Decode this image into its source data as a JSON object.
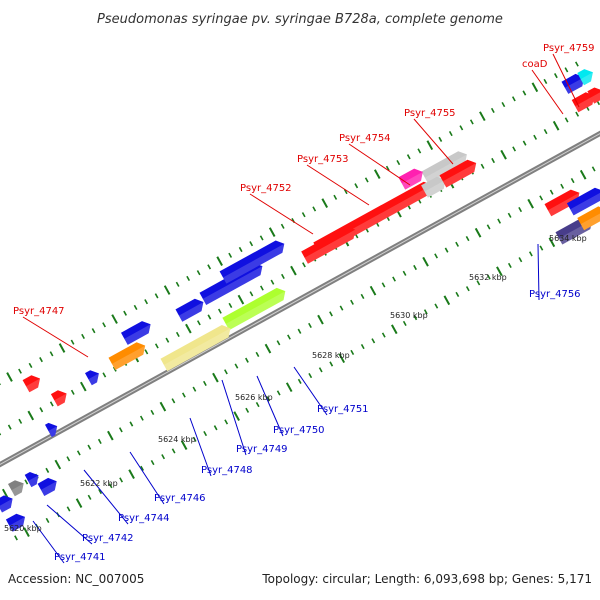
{
  "title": "Pseudomonas syringae pv. syringae B728a, complete genome",
  "footer": {
    "accession": "Accession: NC_007005",
    "topology": "Topology: circular; Length: 6,093,698 bp; Genes: 5,171"
  },
  "colors": {
    "backbone": "#808080",
    "tick": "#1a7a1a",
    "red_label": "#e00000",
    "blue_label": "#0000cc",
    "callout": "#000000"
  },
  "scale_labels": [
    "5620 kbp",
    "5622 kbp",
    "5624 kbp",
    "5626 kbp",
    "5628 kbp",
    "5630 kbp",
    "5632 kbp",
    "5634 kbp"
  ],
  "gene_labels": {
    "top": [
      "Psyr_4759",
      "coaD",
      "Psyr_4755",
      "Psyr_4754",
      "Psyr_4753",
      "Psyr_4752",
      "Psyr_4747"
    ],
    "bottom": [
      "Psyr_4756",
      "Psyr_4751",
      "Psyr_4750",
      "Psyr_4749",
      "Psyr_4748",
      "Psyr_4746",
      "Psyr_4744",
      "Psyr_4742",
      "Psyr_4741"
    ]
  },
  "features": [
    {
      "name": "feature-blue-1",
      "color": "#1010e0"
    },
    {
      "name": "feature-cyan-1",
      "color": "#00e8f0"
    },
    {
      "name": "feature-red-1",
      "color": "#ff1010"
    },
    {
      "name": "feature-red-2",
      "color": "#ff1010"
    },
    {
      "name": "feature-gray-1",
      "color": "#c8c8c8"
    },
    {
      "name": "feature-red-3",
      "color": "#ff1010"
    },
    {
      "name": "feature-magenta-1",
      "color": "#ff20b0"
    },
    {
      "name": "feature-gray-2",
      "color": "#c8c8c8"
    },
    {
      "name": "feature-red-4",
      "color": "#ff1010"
    },
    {
      "name": "feature-red-5",
      "color": "#ff1010"
    },
    {
      "name": "feature-red-6",
      "color": "#ff1010"
    },
    {
      "name": "feature-blue-2",
      "color": "#1010e0"
    },
    {
      "name": "feature-navy-1",
      "color": "#483d8b"
    },
    {
      "name": "feature-orange-1",
      "color": "#ff8c00"
    },
    {
      "name": "feature-blue-3",
      "color": "#1010e0"
    },
    {
      "name": "feature-blue-4",
      "color": "#1010e0"
    },
    {
      "name": "feature-blue-5",
      "color": "#1010e0"
    },
    {
      "name": "feature-yellowgreen-1",
      "color": "#adff2f"
    },
    {
      "name": "feature-khaki-1",
      "color": "#f0e68c"
    },
    {
      "name": "feature-blue-6",
      "color": "#1010e0"
    },
    {
      "name": "feature-orange-2",
      "color": "#ff8c00"
    },
    {
      "name": "feature-olive-1",
      "color": "#6b8e23"
    },
    {
      "name": "feature-red-7",
      "color": "#ff1010"
    },
    {
      "name": "feature-red-8",
      "color": "#ff1010"
    },
    {
      "name": "feature-red-9",
      "color": "#ff1010"
    },
    {
      "name": "feature-blue-7",
      "color": "#1010e0"
    },
    {
      "name": "feature-blue-8",
      "color": "#1010e0"
    },
    {
      "name": "feature-blue-9",
      "color": "#1010e0"
    },
    {
      "name": "feature-blue-10",
      "color": "#1010e0"
    },
    {
      "name": "feature-gray-3",
      "color": "#808080"
    },
    {
      "name": "feature-blue-11",
      "color": "#1010e0"
    },
    {
      "name": "feature-blue-12",
      "color": "#1010e0"
    }
  ]
}
